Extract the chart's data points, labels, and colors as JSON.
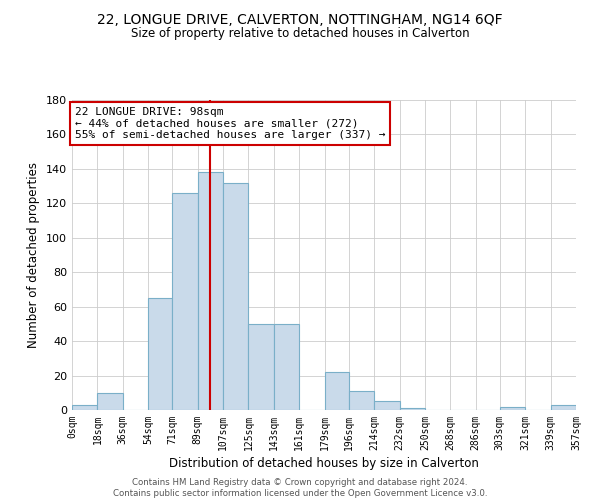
{
  "title": "22, LONGUE DRIVE, CALVERTON, NOTTINGHAM, NG14 6QF",
  "subtitle": "Size of property relative to detached houses in Calverton",
  "xlabel": "Distribution of detached houses by size in Calverton",
  "ylabel": "Number of detached properties",
  "bar_color": "#c9daea",
  "bar_edge_color": "#7aafc8",
  "bin_edges": [
    0,
    18,
    36,
    54,
    71,
    89,
    107,
    125,
    143,
    161,
    179,
    196,
    214,
    232,
    250,
    268,
    286,
    303,
    321,
    339,
    357
  ],
  "bar_heights": [
    3,
    10,
    0,
    65,
    126,
    138,
    132,
    50,
    50,
    0,
    22,
    11,
    5,
    1,
    0,
    0,
    0,
    2,
    0,
    3
  ],
  "tick_labels": [
    "0sqm",
    "18sqm",
    "36sqm",
    "54sqm",
    "71sqm",
    "89sqm",
    "107sqm",
    "125sqm",
    "143sqm",
    "161sqm",
    "179sqm",
    "196sqm",
    "214sqm",
    "232sqm",
    "250sqm",
    "268sqm",
    "286sqm",
    "303sqm",
    "321sqm",
    "339sqm",
    "357sqm"
  ],
  "property_size": 98,
  "property_line_color": "#cc0000",
  "annotation_line1": "22 LONGUE DRIVE: 98sqm",
  "annotation_line2": "← 44% of detached houses are smaller (272)",
  "annotation_line3": "55% of semi-detached houses are larger (337) →",
  "annotation_box_edge_color": "#cc0000",
  "ylim": [
    0,
    180
  ],
  "yticks": [
    0,
    20,
    40,
    60,
    80,
    100,
    120,
    140,
    160,
    180
  ],
  "footer_line1": "Contains HM Land Registry data © Crown copyright and database right 2024.",
  "footer_line2": "Contains public sector information licensed under the Open Government Licence v3.0.",
  "background_color": "#ffffff",
  "grid_color": "#cccccc"
}
